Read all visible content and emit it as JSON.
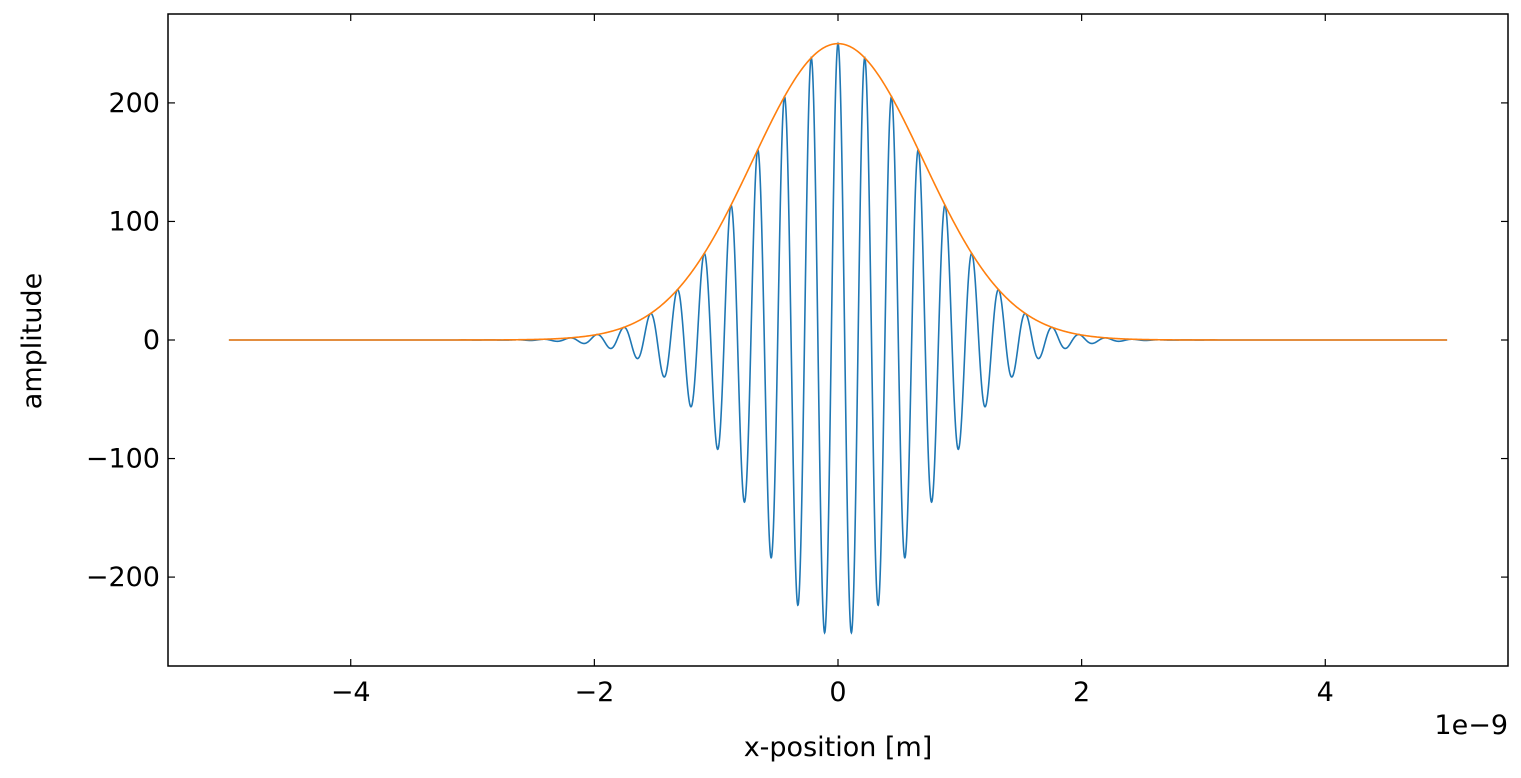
{
  "chart_data": {
    "type": "line",
    "title": "",
    "xlabel": "x-position [m]",
    "ylabel": "amplitude",
    "x_offset_text": "1e−9",
    "xlim": [
      -5.5e-09,
      5.5e-09
    ],
    "ylim": [
      -275,
      275
    ],
    "x_tick_values": [
      -4e-09,
      -2e-09,
      0,
      2e-09,
      4e-09
    ],
    "x_tick_labels": [
      "−4",
      "−2",
      "0",
      "2",
      "4"
    ],
    "y_tick_values": [
      -200,
      -100,
      0,
      100,
      200
    ],
    "y_tick_labels": [
      "−200",
      "−100",
      "0",
      "100",
      "200"
    ],
    "grid": false,
    "legend": "none",
    "ticks_direction": "in",
    "series": [
      {
        "kind": "wave",
        "color": "#1f77b4",
        "x_range": [
          -5e-09,
          5e-09
        ],
        "amplitude": 250,
        "gaussian_sigma": 7e-10,
        "wavelength": 2.2e-10,
        "points": 4000
      },
      {
        "kind": "envelope",
        "color": "#ff7f0e",
        "x_range": [
          -5e-09,
          5e-09
        ],
        "amplitude": 250,
        "gaussian_sigma": 7e-10,
        "points": 1000
      }
    ]
  }
}
